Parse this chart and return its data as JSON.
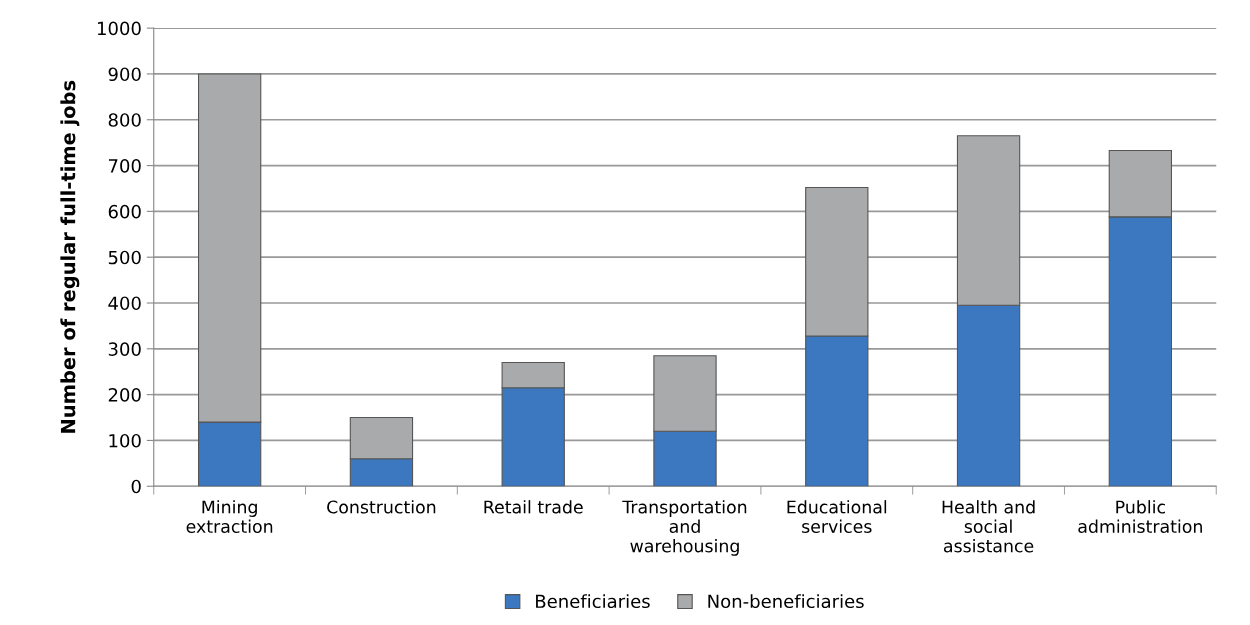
{
  "chart_data": {
    "type": "bar",
    "stacked": true,
    "ylabel": "Number of regular full-time jobs",
    "categories": [
      "Mining\nextraction",
      "Construction",
      "Retail trade",
      "Transportation\nand\nwarehousing",
      "Educational\nservices",
      "Health and\nsocial\nassistance",
      "Public\nadministration"
    ],
    "series": [
      {
        "name": "Beneficiaries",
        "color": "#3b78c0",
        "values": [
          140,
          60,
          215,
          120,
          328,
          395,
          588
        ]
      },
      {
        "name": "Non-beneficiaries",
        "color": "#a9aaab",
        "values": [
          760,
          90,
          55,
          165,
          324,
          370,
          145
        ]
      }
    ],
    "ylim": [
      0,
      1000
    ],
    "yticks": [
      0,
      100,
      200,
      300,
      400,
      500,
      600,
      700,
      800,
      900,
      1000
    ],
    "grid": "y",
    "legend": "bottom"
  }
}
